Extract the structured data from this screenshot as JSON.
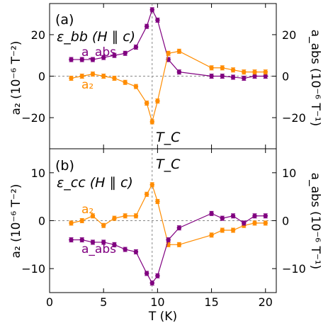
{
  "colors": {
    "abs": "#800080",
    "a2": "#ff8c00",
    "guide": "#888888"
  },
  "x_label": "T (K)",
  "chart_data": [
    {
      "type": "line",
      "panel_label": "(a)",
      "strain_label": "ε_bb (H ∥ c)",
      "tc_label": "T_C",
      "tc_value": 9.5,
      "xlim": [
        0,
        21
      ],
      "ylim": [
        -35,
        35
      ],
      "ylabel": "a₂ (10⁻⁶ T⁻²)",
      "ylabel_right": "a_abs (10⁻⁶ T⁻¹)",
      "xticks": [
        0,
        5,
        10,
        15,
        20
      ],
      "yticks": [
        -20,
        0,
        20
      ],
      "series": [
        {
          "name": "a_abs",
          "color": "#800080",
          "x": [
            2,
            3,
            4,
            5,
            6,
            7,
            8,
            9,
            9.5,
            10,
            11,
            12,
            15,
            16,
            17,
            18,
            19,
            20
          ],
          "y": [
            8,
            8,
            8,
            9,
            10,
            11,
            14,
            24,
            32,
            27,
            8,
            2,
            0,
            0,
            -0.5,
            -1,
            0,
            0
          ]
        },
        {
          "name": "a₂",
          "color": "#ff8c00",
          "x": [
            2,
            3,
            4,
            5,
            6,
            7,
            8,
            9,
            9.5,
            10,
            11,
            12,
            15,
            16,
            17,
            18,
            19,
            20
          ],
          "y": [
            -1,
            0,
            1,
            0,
            -1,
            -3,
            -5,
            -13,
            -22,
            -12,
            11,
            12,
            4,
            4,
            3,
            2,
            2,
            2
          ]
        }
      ]
    },
    {
      "type": "line",
      "panel_label": "(b)",
      "strain_label": "ε_cc (H ∥ c)",
      "tc_label": "T_C",
      "tc_value": 9.5,
      "xlim": [
        0,
        21
      ],
      "ylim": [
        -15,
        15
      ],
      "ylabel": "a₂ (10⁻⁶ T⁻²)",
      "ylabel_right": "a_abs (10⁻⁶ T⁻¹)",
      "xticks": [
        0,
        5,
        10,
        15,
        20
      ],
      "yticks": [
        -10,
        0,
        10
      ],
      "series": [
        {
          "name": "a₂",
          "color": "#ff8c00",
          "x": [
            2,
            3,
            4,
            5,
            6,
            7,
            8,
            9,
            9.5,
            10,
            11,
            12,
            15,
            16,
            17,
            18,
            19,
            20
          ],
          "y": [
            -0.5,
            0,
            1,
            -1,
            0.5,
            1,
            1,
            5.5,
            7.5,
            4,
            -5,
            -5,
            -3,
            -2,
            -2,
            -1,
            -0.5,
            -0.5
          ]
        },
        {
          "name": "a_abs",
          "color": "#800080",
          "x": [
            2,
            3,
            4,
            5,
            6,
            7,
            8,
            9,
            9.5,
            10,
            11,
            12,
            15,
            16,
            17,
            18,
            19,
            20
          ],
          "y": [
            -4,
            -4,
            -4.5,
            -4.5,
            -5,
            -6,
            -6.5,
            -11,
            -13,
            -11.5,
            -4,
            -1.5,
            1.5,
            0.5,
            1,
            -0.5,
            1,
            1
          ]
        }
      ]
    }
  ]
}
